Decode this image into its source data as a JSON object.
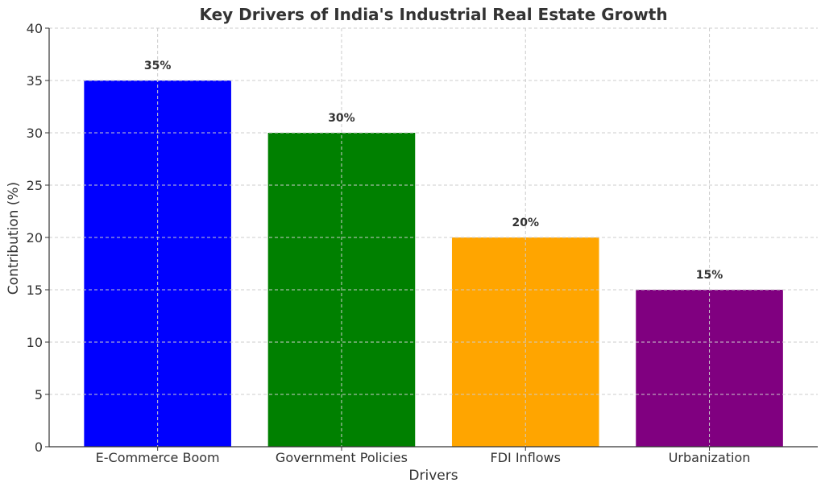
{
  "chart_data": {
    "type": "bar",
    "title": "Key Drivers of India's Industrial Real Estate Growth",
    "xlabel": "Drivers",
    "ylabel": "Contribution (%)",
    "categories": [
      "E-Commerce Boom",
      "Government Policies",
      "FDI Inflows",
      "Urbanization"
    ],
    "values": [
      35,
      30,
      20,
      15
    ],
    "data_labels": [
      "35%",
      "30%",
      "20%",
      "15%"
    ],
    "colors": [
      "#0000ff",
      "#008000",
      "#ffa500",
      "#800080"
    ],
    "ylim": [
      0,
      40
    ],
    "yticks": [
      0,
      5,
      10,
      15,
      20,
      25,
      30,
      35,
      40
    ],
    "grid": true
  }
}
